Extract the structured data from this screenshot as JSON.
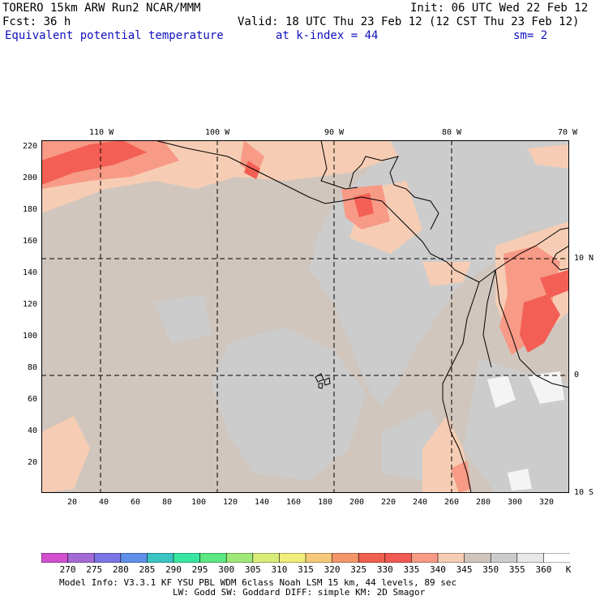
{
  "header": {
    "model": "TORERO  15km ARW   Run2    NCAR/MMM",
    "init": "Init: 06 UTC Wed 22 Feb 12",
    "fcst": "Fcst:   36 h",
    "valid": "Valid: 18 UTC Thu 23 Feb 12 (12 CST Thu 23 Feb 12)",
    "field": "Equivalent potential temperature",
    "level": "at k-index =  44",
    "smooth": "sm= 2"
  },
  "map": {
    "top_lon_labels": [
      "110 W",
      "100 W",
      "90 W",
      "80 W",
      "70 W"
    ],
    "right_lat_labels": [
      "10 N",
      "0",
      "10 S"
    ],
    "y_ticks": [
      "220",
      "200",
      "180",
      "160",
      "140",
      "120",
      "100",
      "80",
      "60",
      "40",
      "20"
    ],
    "x_ticks": [
      "20",
      "40",
      "60",
      "80",
      "100",
      "120",
      "140",
      "160",
      "180",
      "200",
      "220",
      "240",
      "260",
      "280",
      "300",
      "320"
    ],
    "colors": {
      "base": "#d0c6bd",
      "gray": "#cccccc",
      "peach": "#f6cdb4",
      "salmon": "#f79a86",
      "red": "#f35f55",
      "white": "#f4f4f4",
      "coast": "#000000",
      "grid": "#000000"
    }
  },
  "colorbar": {
    "labels": [
      "270",
      "275",
      "280",
      "285",
      "290",
      "295",
      "300",
      "305",
      "310",
      "315",
      "320",
      "325",
      "330",
      "335",
      "340",
      "345",
      "350",
      "355",
      "360"
    ],
    "unit": "K",
    "colors": [
      "#d24fd0",
      "#a46ad6",
      "#7a74e6",
      "#5e90ea",
      "#3cc4c4",
      "#38e6a2",
      "#5ce884",
      "#a0e878",
      "#d8ec78",
      "#f2ec7a",
      "#f6c87a",
      "#f4966a",
      "#f0604e",
      "#f05a52",
      "#f79a86",
      "#f6cdb4",
      "#d0c6bd",
      "#cccccc",
      "#e8e8e8",
      "#ffffff"
    ]
  },
  "footer": {
    "line1": "Model Info: V3.3.1    KF      YSU PBL   WDM 6class  Noah LSM  15 km,    44 levels,    89 sec",
    "line2": "LW: Godd SW: Goddard DIFF: simple KM: 2D Smagor"
  }
}
